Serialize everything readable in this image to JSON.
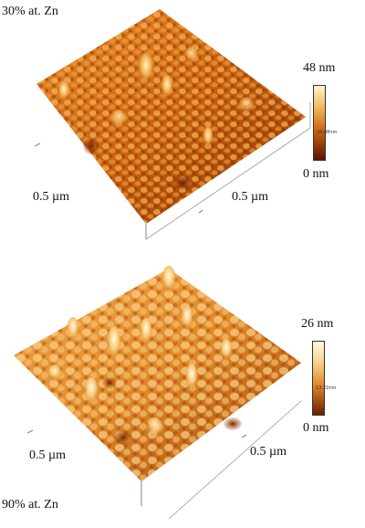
{
  "top": {
    "title": "30% at. Zn",
    "axis_x_label": "0.5 µm",
    "axis_y_label": "0.5  µm",
    "scale_max": "48 nm",
    "scale_mid": "24.08nm",
    "scale_min": "0 nm"
  },
  "bottom": {
    "title": "90% at.  Zn",
    "axis_x_label": "0.5 µm",
    "axis_y_label": "0.5 µm",
    "scale_max": "26 nm",
    "scale_mid": "13.22nm",
    "scale_min": "0 nm"
  },
  "colors": {
    "surface_dark": "#8a2a00",
    "surface_mid": "#d9781a",
    "surface_light": "#ffe6a8",
    "colorbar_top": "#fff4d0",
    "colorbar_bottom": "#5a1500"
  }
}
